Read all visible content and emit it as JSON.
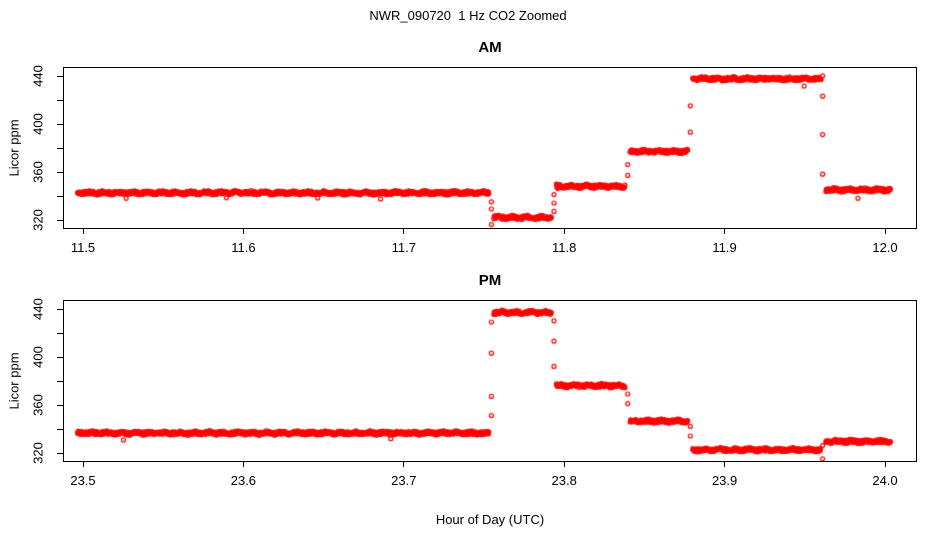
{
  "page": {
    "title": "NWR_090720  1 Hz CO2 Zoomed",
    "xlabel": "Hour of Day (UTC)"
  },
  "chart_data": [
    {
      "type": "scatter",
      "title": "AM",
      "ylabel": "Licor ppm",
      "marker": "open-circle",
      "point_color": "#FF0000",
      "axis_color": "#000000",
      "grid": false,
      "xlim": [
        11.48,
        12.02
      ],
      "ylim": [
        314,
        446
      ],
      "x_ticks": [
        11.5,
        11.6,
        11.7,
        11.8,
        11.9,
        12.0
      ],
      "x_tick_labels": [
        "11.5",
        "11.6",
        "11.7",
        "11.8",
        "11.9",
        "12.0"
      ],
      "y_ticks": [
        320,
        340,
        360,
        380,
        400,
        420,
        440
      ],
      "y_labeled_ticks": [
        320,
        360,
        400,
        440
      ],
      "y_tick_labels": [
        "320",
        "360",
        "400",
        "440"
      ],
      "sample_rate_hz": 1,
      "plateaus": [
        {
          "t_start": 11.496,
          "t_end": 11.7525,
          "value": 343.5
        },
        {
          "t_start": 11.7555,
          "t_end": 11.7915,
          "value": 323.0
        },
        {
          "t_start": 11.7945,
          "t_end": 11.8375,
          "value": 349.0
        },
        {
          "t_start": 11.8405,
          "t_end": 11.8765,
          "value": 378.0
        },
        {
          "t_start": 11.8795,
          "t_end": 11.9595,
          "value": 438.5
        },
        {
          "t_start": 11.9625,
          "t_end": 12.003,
          "value": 346.0
        }
      ],
      "transition_points": [
        {
          "t": 11.754,
          "values": [
            336,
            330,
            317
          ]
        },
        {
          "t": 11.793,
          "values": [
            328,
            335,
            342
          ]
        },
        {
          "t": 11.839,
          "values": [
            358,
            367
          ]
        },
        {
          "t": 11.878,
          "values": [
            394,
            416
          ]
        },
        {
          "t": 11.9605,
          "values": [
            441,
            424,
            392,
            359
          ]
        }
      ]
    },
    {
      "type": "scatter",
      "title": "PM",
      "ylabel": "Licor ppm",
      "marker": "open-circle",
      "point_color": "#FF0000",
      "axis_color": "#000000",
      "grid": false,
      "xlim": [
        23.48,
        24.02
      ],
      "ylim": [
        314,
        446
      ],
      "x_ticks": [
        23.5,
        23.6,
        23.7,
        23.8,
        23.9,
        24.0
      ],
      "x_tick_labels": [
        "23.5",
        "23.6",
        "23.7",
        "23.8",
        "23.9",
        "24.0"
      ],
      "y_ticks": [
        320,
        340,
        360,
        380,
        400,
        420,
        440
      ],
      "y_labeled_ticks": [
        320,
        360,
        400,
        440
      ],
      "y_tick_labels": [
        "320",
        "360",
        "400",
        "440"
      ],
      "sample_rate_hz": 1,
      "plateaus": [
        {
          "t_start": 23.496,
          "t_end": 23.7525,
          "value": 337.5
        },
        {
          "t_start": 23.7555,
          "t_end": 23.7915,
          "value": 438.0
        },
        {
          "t_start": 23.7945,
          "t_end": 23.8375,
          "value": 377.0
        },
        {
          "t_start": 23.8405,
          "t_end": 23.8765,
          "value": 347.5
        },
        {
          "t_start": 23.8795,
          "t_end": 23.9595,
          "value": 323.5
        },
        {
          "t_start": 23.9625,
          "t_end": 24.003,
          "value": 330.5
        }
      ],
      "transition_points": [
        {
          "t": 23.754,
          "values": [
            352,
            368,
            404,
            430
          ]
        },
        {
          "t": 23.793,
          "values": [
            431,
            414,
            393
          ]
        },
        {
          "t": 23.839,
          "values": [
            370,
            362
          ]
        },
        {
          "t": 23.878,
          "values": [
            343,
            335
          ]
        },
        {
          "t": 23.9605,
          "values": [
            316,
            327
          ]
        }
      ]
    }
  ]
}
